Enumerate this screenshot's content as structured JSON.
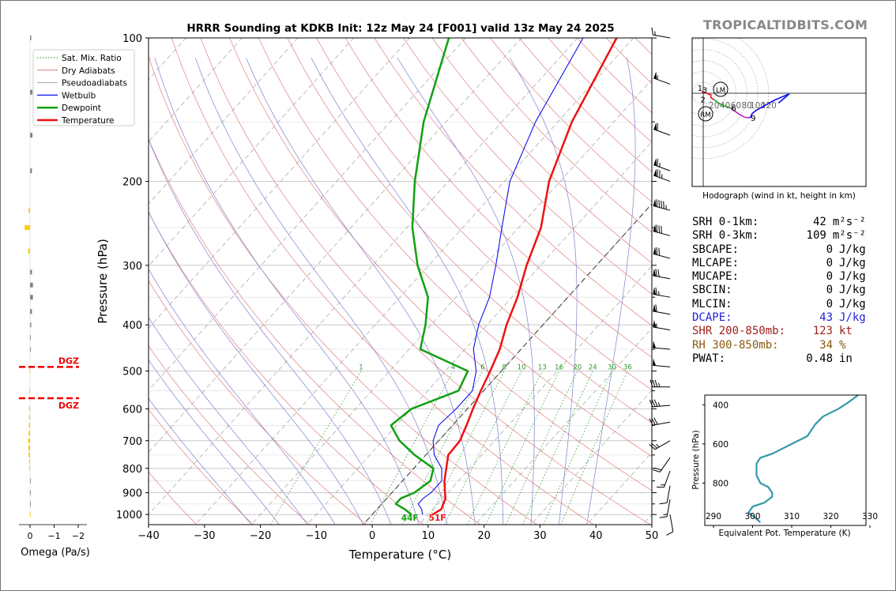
{
  "title": "HRRR Sounding at KDKB Init: 12z May 24 [F001] valid 13z May 24 2025",
  "brand": "TROPICALTIDBITS.COM",
  "chart_data": [
    {
      "type": "line",
      "name": "skew-t",
      "xlabel": "Temperature (°C)",
      "ylabel": "Pressure (hPa)",
      "xlim": [
        -40,
        50
      ],
      "ylim": [
        1050,
        100
      ],
      "yscale": "log",
      "xticks": [
        "−40",
        "−30",
        "−20",
        "−10",
        "0",
        "10",
        "20",
        "30",
        "40",
        "50"
      ],
      "yticks": [
        "100",
        "200",
        "300",
        "400",
        "500",
        "600",
        "700",
        "800",
        "900",
        "1000"
      ],
      "ytick_values": [
        100,
        200,
        300,
        400,
        500,
        600,
        700,
        800,
        900,
        1000
      ],
      "grid": true,
      "legend": {
        "position": "top-left",
        "entries": [
          "Sat. Mix. Ratio",
          "Dry Adiabats",
          "Pseudoadiabats",
          "Wetbulb",
          "Dewpoint",
          "Temperature"
        ]
      },
      "colors": {
        "temperature": "#ee1111",
        "dewpoint": "#10a010",
        "wetbulb": "#1010ee",
        "dry": "#e08080",
        "moist": "#8080d0",
        "mix": "#2a9a2a"
      },
      "mixing_ratio_labels": [
        "1",
        "4",
        "6",
        "8",
        "10",
        "13",
        "16",
        "20",
        "24",
        "30",
        "36"
      ],
      "mixing_ratio_values": [
        1,
        4,
        6,
        8,
        10,
        13,
        16,
        20,
        24,
        30,
        36
      ],
      "surface_labels": {
        "dewpoint": "44F",
        "temperature": "51F"
      },
      "series": [
        {
          "name": "Temperature",
          "points": [
            [
              1000,
              10.8
            ],
            [
              975,
              11.5
            ],
            [
              950,
              11.0
            ],
            [
              925,
              10.5
            ],
            [
              900,
              9.5
            ],
            [
              850,
              7.5
            ],
            [
              800,
              5.8
            ],
            [
              750,
              4.0
            ],
            [
              700,
              3.8
            ],
            [
              650,
              2.5
            ],
            [
              600,
              1.0
            ],
            [
              550,
              -0.5
            ],
            [
              500,
              -2.0
            ],
            [
              450,
              -3.8
            ],
            [
              400,
              -6.5
            ],
            [
              350,
              -9.0
            ],
            [
              300,
              -12.5
            ],
            [
              250,
              -16.0
            ],
            [
              200,
              -22.0
            ],
            [
              150,
              -27.5
            ],
            [
              100,
              -33.0
            ]
          ]
        },
        {
          "name": "Dewpoint",
          "points": [
            [
              1000,
              7.0
            ],
            [
              975,
              5.0
            ],
            [
              950,
              2.5
            ],
            [
              925,
              2.5
            ],
            [
              900,
              4.0
            ],
            [
              850,
              5.0
            ],
            [
              800,
              3.5
            ],
            [
              750,
              -2.0
            ],
            [
              700,
              -7.0
            ],
            [
              650,
              -11.0
            ],
            [
              600,
              -10.0
            ],
            [
              550,
              -4.5
            ],
            [
              500,
              -6.0
            ],
            [
              450,
              -18.0
            ],
            [
              400,
              -21.0
            ],
            [
              350,
              -25.0
            ],
            [
              300,
              -32.0
            ],
            [
              250,
              -39.0
            ],
            [
              200,
              -46.0
            ],
            [
              150,
              -54.0
            ],
            [
              100,
              -63.0
            ]
          ]
        },
        {
          "name": "Wetbulb",
          "points": [
            [
              1000,
              9.0
            ],
            [
              975,
              8.0
            ],
            [
              950,
              6.5
            ],
            [
              925,
              6.5
            ],
            [
              900,
              7.0
            ],
            [
              850,
              7.0
            ],
            [
              800,
              5.0
            ],
            [
              750,
              1.5
            ],
            [
              700,
              -1.0
            ],
            [
              650,
              -2.5
            ],
            [
              600,
              -2.0
            ],
            [
              550,
              -2.0
            ],
            [
              500,
              -4.5
            ],
            [
              450,
              -8.5
            ],
            [
              400,
              -11.5
            ],
            [
              350,
              -14.0
            ],
            [
              300,
              -18.0
            ],
            [
              250,
              -23.0
            ],
            [
              200,
              -29.0
            ],
            [
              150,
              -34.0
            ],
            [
              100,
              -39.0
            ]
          ]
        }
      ]
    },
    {
      "type": "line",
      "name": "hodograph",
      "xlabel": "Hodograph (wind in kt, height in km)",
      "ring_labels": [
        "20",
        "40",
        "60",
        "80",
        "100",
        "120"
      ],
      "ring_values": [
        20,
        40,
        60,
        80,
        100,
        120
      ],
      "markers": {
        "LM": "LM",
        "RM": "RM"
      },
      "height_labels": [
        "1",
        "2",
        "3",
        "6",
        "9"
      ],
      "series": [
        {
          "name": "0-1km",
          "color": "#ee1111",
          "points": [
            [
              -3,
              3
            ],
            [
              2,
              2
            ],
            [
              8,
              -1
            ]
          ]
        },
        {
          "name": "1-3km",
          "color": "#ee1111",
          "points": [
            [
              8,
              -1
            ],
            [
              14,
              -3
            ],
            [
              14,
              -8
            ],
            [
              17,
              -10
            ],
            [
              19,
              -11
            ]
          ]
        },
        {
          "name": "3-6km",
          "color": "#20a020",
          "points": [
            [
              19,
              -11
            ],
            [
              28,
              -18
            ],
            [
              38,
              -23
            ],
            [
              50,
              -27
            ]
          ]
        },
        {
          "name": "6-9km",
          "color": "#c020c0",
          "points": [
            [
              50,
              -27
            ],
            [
              65,
              -38
            ],
            [
              76,
              -44
            ],
            [
              86,
              -45
            ]
          ]
        },
        {
          "name": "9+km",
          "color": "#1010ee",
          "points": [
            [
              86,
              -45
            ],
            [
              90,
              -37
            ],
            [
              98,
              -31
            ],
            [
              130,
              -13
            ],
            [
              158,
              -1
            ],
            [
              145,
              -12
            ],
            [
              138,
              -18
            ],
            [
              156,
              -3
            ]
          ]
        }
      ]
    },
    {
      "type": "line",
      "name": "theta-e",
      "xlabel": "Equivalent Pot. Temperature (K)",
      "ylabel": "Pressure (hPa)",
      "xlim": [
        290,
        330
      ],
      "xticks": [
        "290",
        "300",
        "310",
        "320",
        "330"
      ],
      "xtick_values": [
        290,
        300,
        310,
        320,
        330
      ],
      "ylim": [
        1000,
        350
      ],
      "yticks": [
        "400",
        "600",
        "800"
      ],
      "ytick_values": [
        400,
        600,
        800
      ],
      "color": "#3399aa",
      "series": [
        {
          "name": "theta-e",
          "points": [
            [
              1000,
              302
            ],
            [
              950,
              299
            ],
            [
              920,
              300
            ],
            [
              900,
              303
            ],
            [
              870,
              305
            ],
            [
              850,
              305
            ],
            [
              820,
              304
            ],
            [
              800,
              302
            ],
            [
              760,
              301
            ],
            [
              700,
              301
            ],
            [
              670,
              302
            ],
            [
              650,
              305
            ],
            [
              600,
              310
            ],
            [
              560,
              314
            ],
            [
              530,
              315
            ],
            [
              500,
              316
            ],
            [
              460,
              318
            ],
            [
              420,
              322
            ],
            [
              380,
              325
            ],
            [
              350,
              327
            ]
          ]
        }
      ]
    },
    {
      "type": "bar",
      "name": "omega",
      "xlabel": "Omega (Pa/s)",
      "xticks": [
        "0",
        "−1",
        "−2"
      ],
      "xtick_values": [
        0,
        -1,
        -2
      ],
      "dgz_label": "DGZ",
      "dgz_levels": [
        490,
        570
      ],
      "levels": [
        100,
        130,
        160,
        190,
        230,
        250,
        280,
        310,
        330,
        350,
        375,
        400,
        425,
        450,
        500,
        550,
        600,
        625,
        650,
        675,
        700,
        725,
        750,
        775,
        800,
        850,
        900,
        950,
        1000
      ],
      "values": [
        -0.05,
        -0.1,
        -0.1,
        -0.08,
        0.06,
        0.22,
        0.08,
        -0.08,
        -0.12,
        -0.12,
        -0.08,
        -0.05,
        -0.03,
        0.0,
        0.02,
        0.03,
        0.04,
        0.04,
        0.05,
        0.06,
        0.08,
        0.07,
        0.06,
        0.04,
        0.03,
        -0.02,
        -0.02,
        0.0,
        0.01
      ]
    }
  ],
  "wind_barbs": {
    "levels": [
      100,
      125,
      160,
      190,
      200,
      230,
      260,
      290,
      320,
      350,
      380,
      410,
      450,
      490,
      540,
      590,
      640,
      700,
      760,
      810,
      870,
      930,
      1000
    ],
    "speeds": [
      15,
      55,
      60,
      65,
      75,
      95,
      80,
      70,
      70,
      65,
      60,
      55,
      50,
      50,
      35,
      35,
      30,
      25,
      20,
      15,
      10,
      15,
      10
    ],
    "dirs": [
      280,
      290,
      290,
      290,
      290,
      285,
      285,
      285,
      280,
      280,
      280,
      280,
      275,
      275,
      270,
      265,
      260,
      240,
      215,
      200,
      190,
      190,
      170
    ]
  },
  "stats": [
    {
      "label": "SRH 0-1km:",
      "value": "42",
      "unit": "m²s⁻²",
      "color": "#000000"
    },
    {
      "label": "SRH 0-3km:",
      "value": "109",
      "unit": "m²s⁻²",
      "color": "#000000"
    },
    {
      "label": "SBCAPE:",
      "value": "0",
      "unit": "J/kg",
      "color": "#000000"
    },
    {
      "label": "MLCAPE:",
      "value": "0",
      "unit": "J/kg",
      "color": "#000000"
    },
    {
      "label": "MUCAPE:",
      "value": "0",
      "unit": "J/kg",
      "color": "#000000"
    },
    {
      "label": "SBCIN:",
      "value": "0",
      "unit": "J/kg",
      "color": "#000000"
    },
    {
      "label": "MLCIN:",
      "value": "0",
      "unit": "J/kg",
      "color": "#000000"
    },
    {
      "label": "DCAPE:",
      "value": "43",
      "unit": "J/kg",
      "color": "#2222dd"
    },
    {
      "label": "SHR 200-850mb:",
      "value": "123",
      "unit": "kt",
      "color": "#a0201a"
    },
    {
      "label": "RH 300-850mb:",
      "value": "34",
      "unit": "%",
      "color": "#8a5a10"
    },
    {
      "label": "PWAT:",
      "value": "0.48",
      "unit": "in",
      "color": "#000000"
    }
  ]
}
